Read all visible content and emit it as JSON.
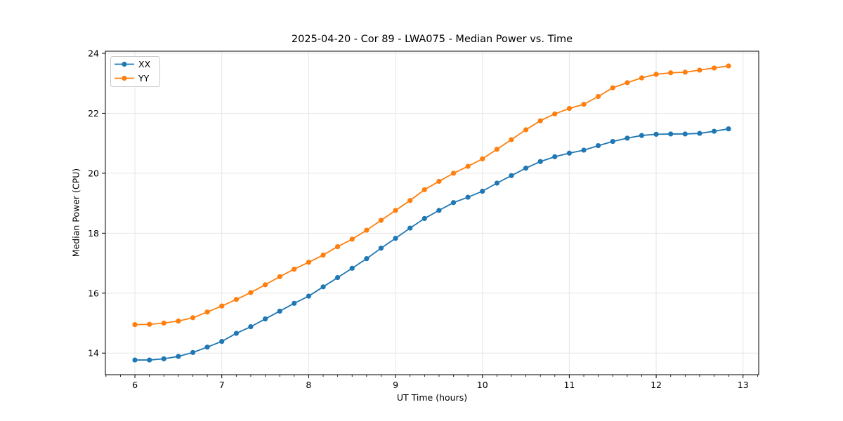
{
  "chart_data": {
    "type": "line",
    "title": "2025-04-20 - Cor 89 - LWA075 - Median Power vs. Time",
    "xlabel": "UT Time (hours)",
    "ylabel": "Median Power (CPU)",
    "xlim": [
      5.66,
      13.18
    ],
    "ylim": [
      13.28,
      24.07
    ],
    "xticks": [
      6,
      7,
      8,
      9,
      10,
      11,
      12,
      13
    ],
    "yticks": [
      14,
      16,
      18,
      20,
      22,
      24
    ],
    "minor_x_step": 0.16667,
    "grid": true,
    "grid_color": "#e6e6e6",
    "legend_position": "upper-left",
    "marker": "circle",
    "x": [
      6.0,
      6.167,
      6.333,
      6.5,
      6.667,
      6.833,
      7.0,
      7.167,
      7.333,
      7.5,
      7.667,
      7.833,
      8.0,
      8.167,
      8.333,
      8.5,
      8.667,
      8.833,
      9.0,
      9.167,
      9.333,
      9.5,
      9.667,
      9.833,
      10.0,
      10.167,
      10.333,
      10.5,
      10.667,
      10.833,
      11.0,
      11.167,
      11.333,
      11.5,
      11.667,
      11.833,
      12.0,
      12.167,
      12.333,
      12.5,
      12.667,
      12.833
    ],
    "series": [
      {
        "name": "XX",
        "color": "#1f77b4",
        "values": [
          13.77,
          13.77,
          13.81,
          13.89,
          14.02,
          14.2,
          14.39,
          14.66,
          14.88,
          15.14,
          15.4,
          15.66,
          15.9,
          16.21,
          16.52,
          16.83,
          17.15,
          17.5,
          17.83,
          18.17,
          18.49,
          18.76,
          19.02,
          19.2,
          19.4,
          19.67,
          19.92,
          20.17,
          20.39,
          20.55,
          20.67,
          20.77,
          20.92,
          21.06,
          21.17,
          21.26,
          21.3,
          21.31,
          21.31,
          21.33,
          21.4,
          21.48
        ]
      },
      {
        "name": "YY",
        "color": "#ff7f0e",
        "values": [
          14.95,
          14.96,
          15.0,
          15.07,
          15.18,
          15.37,
          15.57,
          15.79,
          16.02,
          16.28,
          16.55,
          16.8,
          17.03,
          17.27,
          17.55,
          17.8,
          18.1,
          18.43,
          18.76,
          19.09,
          19.45,
          19.73,
          20.0,
          20.23,
          20.48,
          20.8,
          21.12,
          21.45,
          21.75,
          21.98,
          22.16,
          22.3,
          22.56,
          22.85,
          23.02,
          23.18,
          23.3,
          23.35,
          23.37,
          23.44,
          23.51,
          23.58
        ]
      }
    ]
  }
}
